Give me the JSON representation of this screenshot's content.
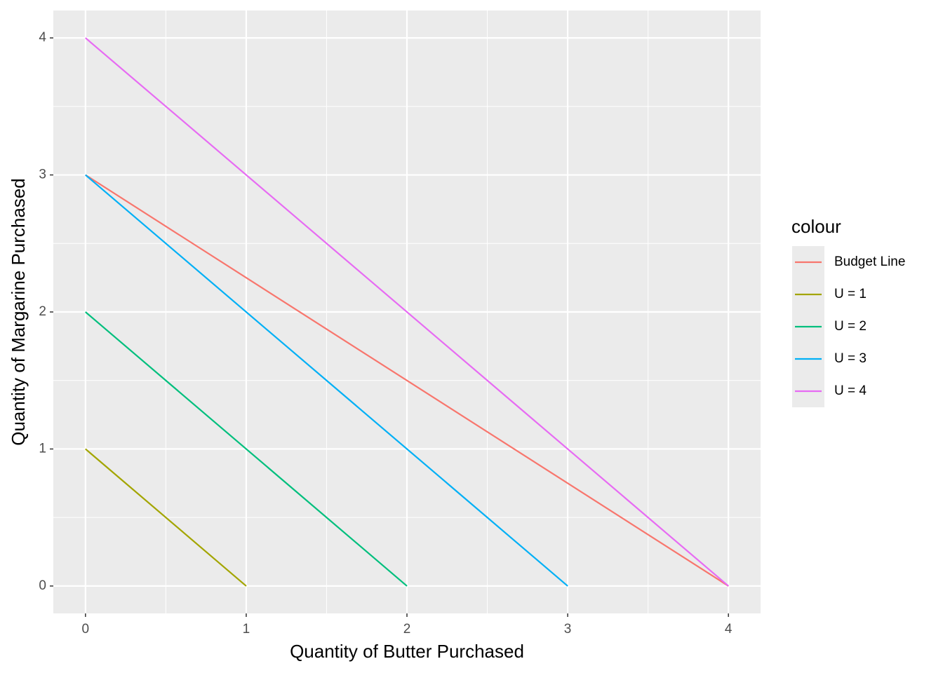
{
  "chart_data": {
    "type": "line",
    "x_label": "Quantity of Butter Purchased",
    "y_label": "Quantity of Margarine Purchased",
    "legend_title": "colour",
    "series": [
      {
        "name": "Budget Line",
        "color": "#f8766d",
        "x": [
          0,
          4
        ],
        "values": [
          3,
          0
        ]
      },
      {
        "name": "U = 1",
        "color": "#a3a500",
        "x": [
          0,
          1
        ],
        "values": [
          1,
          0
        ]
      },
      {
        "name": "U = 2",
        "color": "#00bf7d",
        "x": [
          0,
          2
        ],
        "values": [
          2,
          0
        ]
      },
      {
        "name": "U = 3",
        "color": "#00b0f6",
        "x": [
          0,
          3
        ],
        "values": [
          3,
          0
        ]
      },
      {
        "name": "U = 4",
        "color": "#e76bf3",
        "x": [
          0,
          4
        ],
        "values": [
          4,
          0
        ]
      }
    ],
    "xlim": [
      -0.2,
      4.2
    ],
    "ylim": [
      -0.2,
      4.2
    ],
    "xticks": [
      0,
      1,
      2,
      3,
      4
    ],
    "yticks": [
      0,
      1,
      2,
      3,
      4
    ],
    "grid": true,
    "minor_grid": true,
    "legend": "right"
  }
}
